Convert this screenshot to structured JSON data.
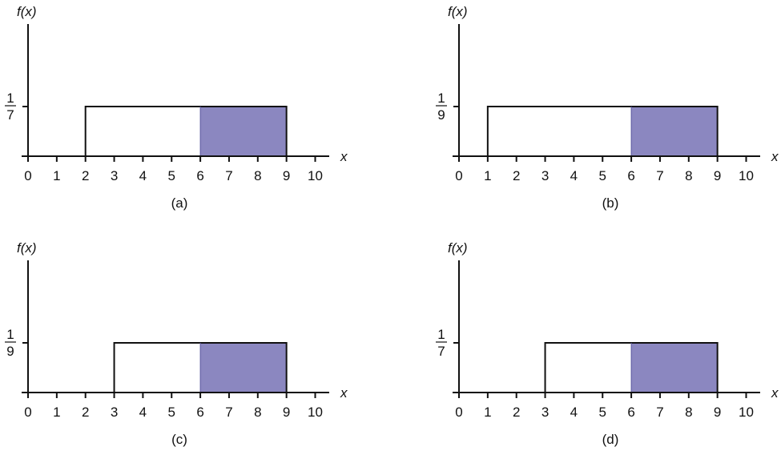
{
  "chart_data": [
    {
      "type": "area",
      "panel_label": "(a)",
      "ylabel": "f(x)",
      "xlabel": "x",
      "density_label": {
        "numerator": "1",
        "denominator": "7"
      },
      "density": 0.142857,
      "uniform_range": [
        2,
        9
      ],
      "shaded_range": [
        6,
        9
      ],
      "xticks": [
        0,
        1,
        2,
        3,
        4,
        5,
        6,
        7,
        8,
        9,
        10
      ],
      "xlim": [
        0,
        10
      ]
    },
    {
      "type": "area",
      "panel_label": "(b)",
      "ylabel": "f(x)",
      "xlabel": "x",
      "density_label": {
        "numerator": "1",
        "denominator": "9"
      },
      "density": 0.111111,
      "uniform_range": [
        1,
        9
      ],
      "shaded_range": [
        6,
        9
      ],
      "xticks": [
        0,
        1,
        2,
        3,
        4,
        5,
        6,
        7,
        8,
        9,
        10
      ],
      "xlim": [
        0,
        10
      ]
    },
    {
      "type": "area",
      "panel_label": "(c)",
      "ylabel": "f(x)",
      "xlabel": "x",
      "density_label": {
        "numerator": "1",
        "denominator": "9"
      },
      "density": 0.111111,
      "uniform_range": [
        3,
        9
      ],
      "shaded_range": [
        6,
        9
      ],
      "xticks": [
        0,
        1,
        2,
        3,
        4,
        5,
        6,
        7,
        8,
        9,
        10
      ],
      "xlim": [
        0,
        10
      ]
    },
    {
      "type": "area",
      "panel_label": "(d)",
      "ylabel": "f(x)",
      "xlabel": "x",
      "density_label": {
        "numerator": "1",
        "denominator": "7"
      },
      "density": 0.142857,
      "uniform_range": [
        3,
        9
      ],
      "shaded_range": [
        6,
        9
      ],
      "xticks": [
        0,
        1,
        2,
        3,
        4,
        5,
        6,
        7,
        8,
        9,
        10
      ],
      "xlim": [
        0,
        10
      ]
    }
  ],
  "colors": {
    "shade": "#8b87c0",
    "line": "#111111"
  }
}
